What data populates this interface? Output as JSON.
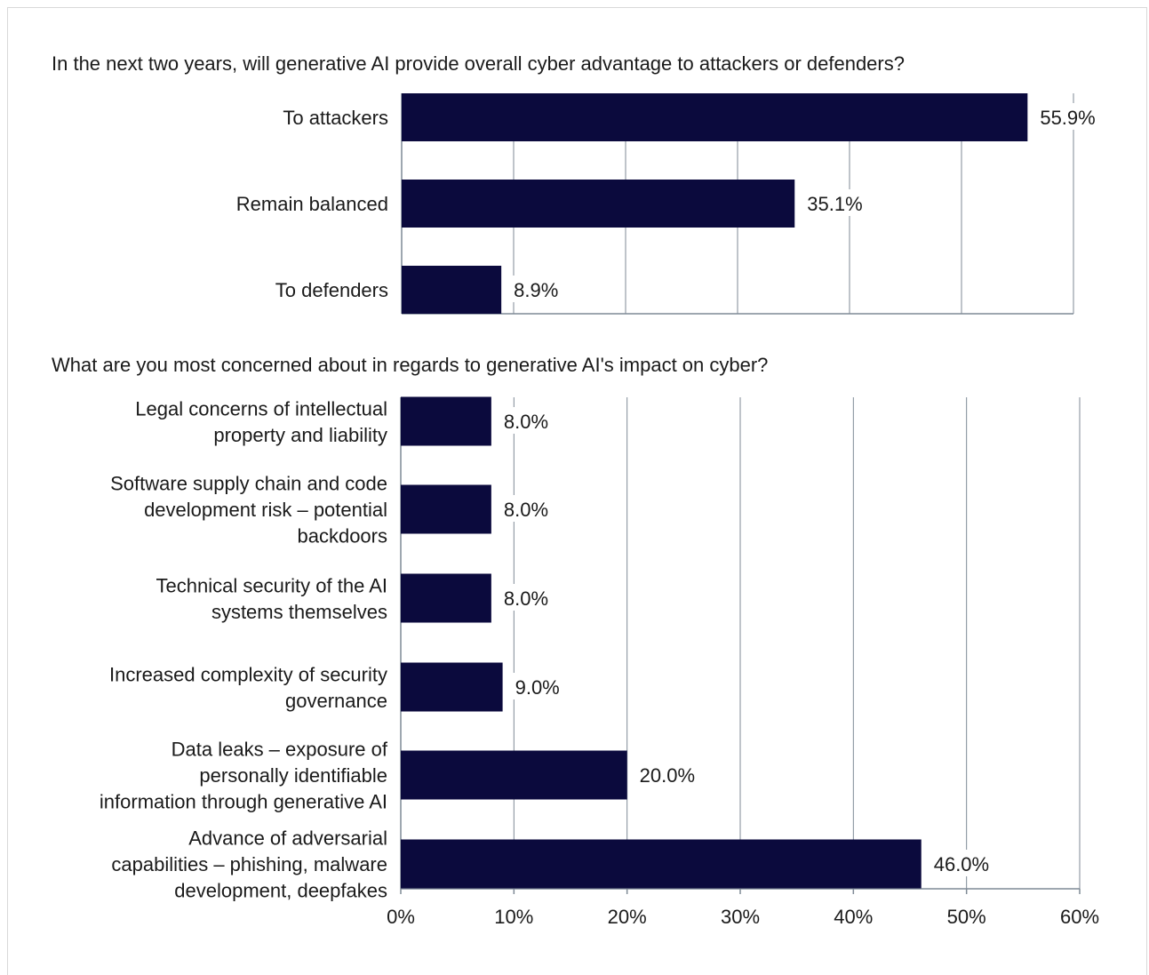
{
  "chart_data": [
    {
      "type": "bar",
      "orientation": "horizontal",
      "title": "In the next two years, will generative AI provide overall cyber advantage to attackers or defenders?",
      "categories": [
        "To attackers",
        "Remain balanced",
        "To defenders"
      ],
      "values": [
        55.9,
        35.1,
        8.9
      ],
      "value_labels": [
        "55.9%",
        "35.1%",
        "8.9%"
      ],
      "xlim": [
        0,
        60
      ],
      "grid": true,
      "bar_color": "#0b0a3d"
    },
    {
      "type": "bar",
      "orientation": "horizontal",
      "title": "What are you most concerned about in regards to generative AI's impact on cyber?",
      "categories": [
        [
          "Legal concerns of intellectual",
          "property and liability"
        ],
        [
          "Software supply chain and code",
          "development risk – potential",
          "backdoors"
        ],
        [
          "Technical security of the AI",
          "systems themselves"
        ],
        [
          "Increased complexity of security",
          "governance"
        ],
        [
          "Data leaks – exposure of",
          "personally identifiable",
          "information through generative AI"
        ],
        [
          "Advance of adversarial",
          "capabilities – phishing, malware",
          "development, deepfakes"
        ]
      ],
      "values": [
        8.0,
        8.0,
        8.0,
        9.0,
        20.0,
        46.0
      ],
      "value_labels": [
        "8.0%",
        "8.0%",
        "8.0%",
        "9.0%",
        "20.0%",
        "46.0%"
      ],
      "xlim": [
        0,
        60
      ],
      "xticks": [
        "0%",
        "10%",
        "20%",
        "30%",
        "40%",
        "50%",
        "60%"
      ],
      "grid": true,
      "bar_color": "#0b0a3d"
    }
  ]
}
